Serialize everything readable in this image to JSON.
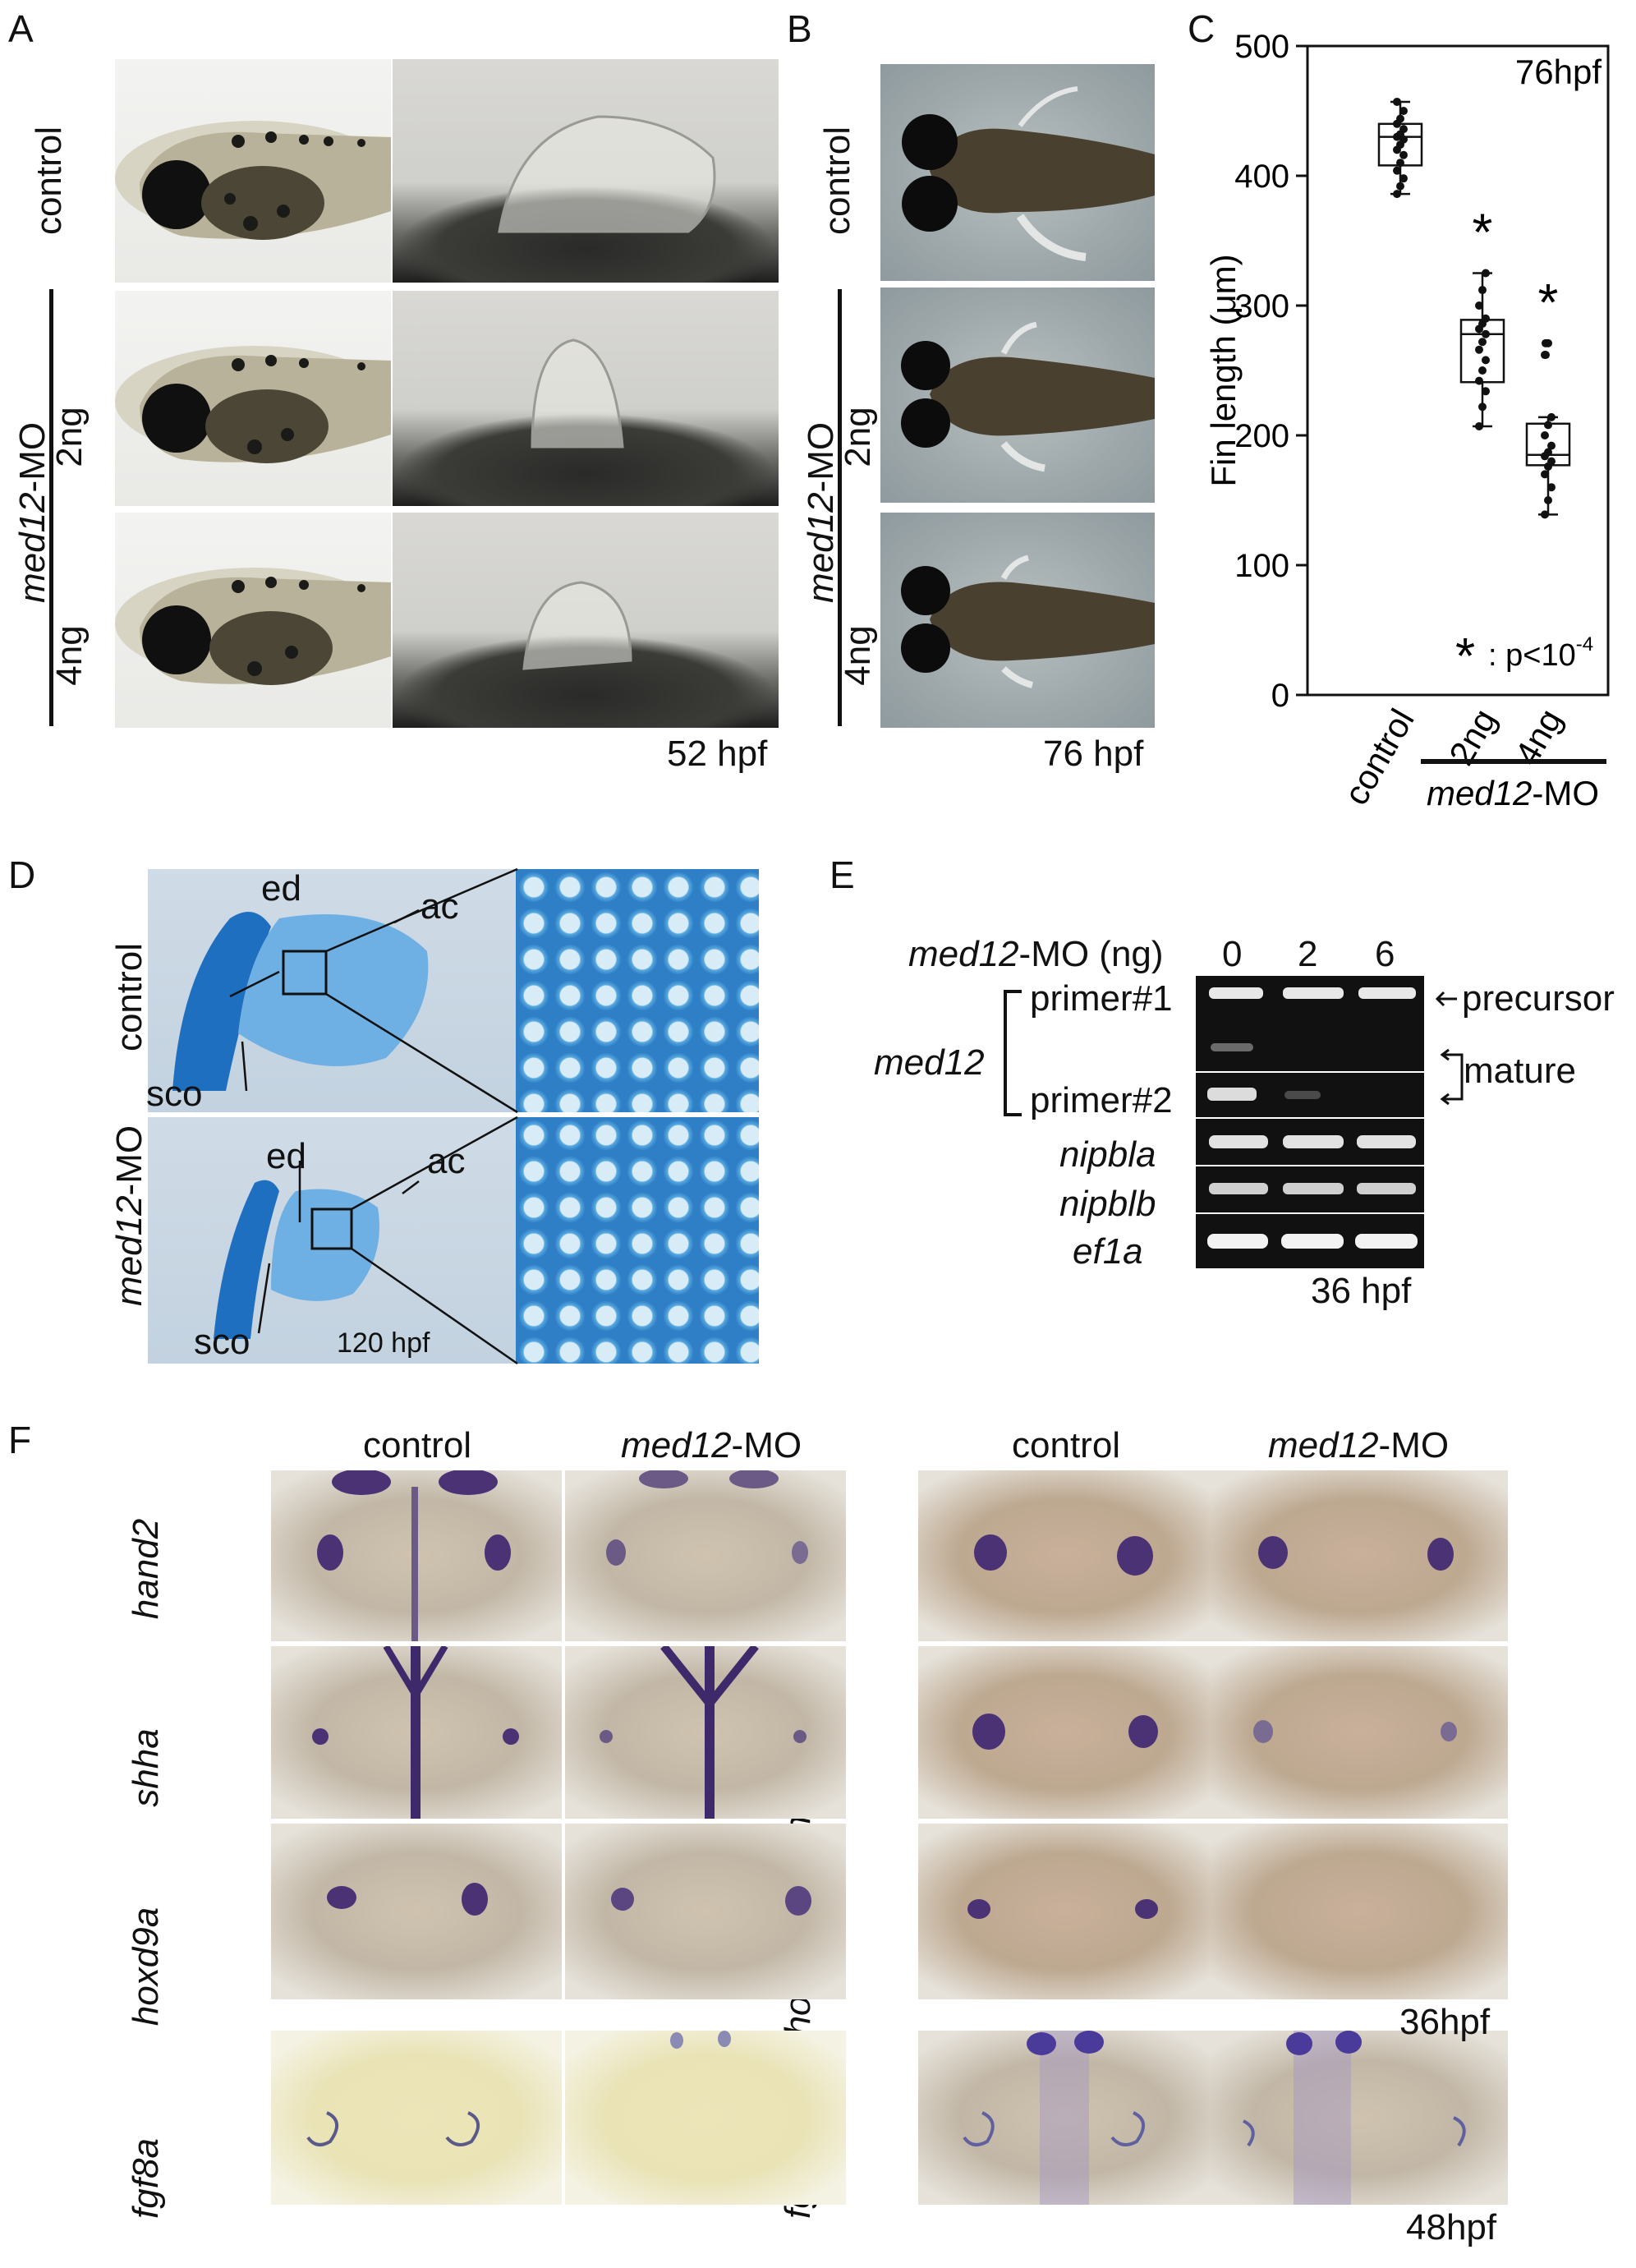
{
  "panels": {
    "A": {
      "letter": "A",
      "rows": [
        "control",
        "2ng",
        "4ng"
      ],
      "group_label_italic": "med12",
      "group_label_rest": "-MO",
      "time": "52 hpf"
    },
    "B": {
      "letter": "B",
      "rows": [
        "control",
        "2ng",
        "4ng"
      ],
      "group_label_italic": "med12",
      "group_label_rest": "-MO",
      "time": "76 hpf"
    },
    "C": {
      "letter": "C"
    },
    "D": {
      "letter": "D",
      "rows": [
        "control"
      ],
      "group_label_italic": "med12",
      "group_label_rest": "-MO",
      "labels": [
        "ed",
        "ac",
        "sco"
      ],
      "time": "120 hpf"
    },
    "E": {
      "letter": "E",
      "dose_header_italic": "med12",
      "dose_header_rest": "-MO (ng)",
      "doses": [
        "0",
        "2",
        "6"
      ],
      "gene_italic": "med12",
      "primers": [
        "primer#1",
        "primer#2"
      ],
      "other_genes": [
        "nipbla",
        "nipblb",
        "ef1a"
      ],
      "precursor": "precursor",
      "mature": "mature",
      "time": "36 hpf"
    },
    "F": {
      "letter": "F",
      "col_control": "control",
      "col_mo_italic": "med12",
      "col_mo_rest": "-MO",
      "left_genes": [
        "hand2",
        "shha",
        "hoxd9a",
        "fgf8a"
      ],
      "right_genes": [
        "hoxd10a",
        "hoxd11a",
        "hoxd13a",
        "fgf16"
      ],
      "time_36": "36hpf",
      "time_48": "48hpf"
    }
  },
  "chart_data": {
    "type": "box",
    "title": "",
    "annotation_time": "76hpf",
    "ylabel": "Fin length (μm)",
    "ylim": [
      0,
      500
    ],
    "yticks": [
      "0",
      "100",
      "200",
      "300",
      "400",
      "500"
    ],
    "categories": [
      "control",
      "2ng",
      "4ng"
    ],
    "group_label_italic": "med12",
    "group_label_rest": "-MO",
    "significance_note": ": p<10",
    "significance_exponent": "-4",
    "significant": [
      false,
      true,
      true
    ],
    "boxes": [
      {
        "name": "control",
        "whisker_low": 386,
        "q1": 408,
        "median": 430,
        "q3": 440,
        "whisker_high": 457
      },
      {
        "name": "2ng",
        "whisker_low": 207,
        "q1": 241,
        "median": 278,
        "q3": 289,
        "whisker_high": 325
      },
      {
        "name": "4ng",
        "whisker_low": 139,
        "q1": 177,
        "median": 185,
        "q3": 209,
        "whisker_high": 214,
        "outliers": [
          262,
          271
        ]
      }
    ],
    "points": [
      [
        386,
        392,
        398,
        404,
        410,
        416,
        420,
        424,
        428,
        430,
        432,
        436,
        440,
        444,
        450,
        457
      ],
      [
        207,
        222,
        234,
        242,
        250,
        258,
        266,
        272,
        278,
        282,
        286,
        290,
        300,
        312,
        325
      ],
      [
        139,
        150,
        160,
        170,
        176,
        180,
        184,
        187,
        192,
        200,
        208,
        214,
        262,
        271
      ]
    ]
  },
  "colors": {
    "ink": "#111111",
    "ish_stain": "#4a3275",
    "alcian": "#2f7fc7",
    "gel_band": "#f2f2f2"
  }
}
